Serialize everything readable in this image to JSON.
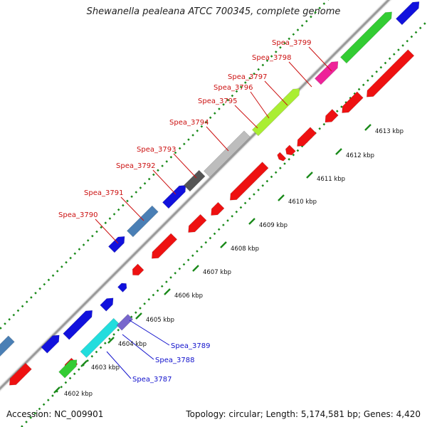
{
  "title": "Shewanella pealeana ATCC 700345, complete genome",
  "footer": {
    "accession": "Accession: NC_009901",
    "topology": "Topology: circular; Length: 5,174,581 bp; Genes: 4,420"
  },
  "tick_labels": [
    "4602 kbp",
    "4603 kbp",
    "4604 kbp",
    "4605 kbp",
    "4606 kbp",
    "4607 kbp",
    "4608 kbp",
    "4609 kbp",
    "4610 kbp",
    "4611 kbp",
    "4612 kbp",
    "4613 kbp"
  ],
  "gene_labels_red": [
    "Spea_3790",
    "Spea_3791",
    "Spea_3792",
    "Spea_3793",
    "Spea_3794",
    "Spea_3795",
    "Spea_3796",
    "Spea_3797",
    "Spea_3798",
    "Spea_3799"
  ],
  "gene_labels_blue": [
    "Spea_3787",
    "Spea_3788",
    "Spea_3789"
  ],
  "colors": {
    "backbone": "#9a9a9a",
    "tick": "#1a8a1a",
    "reverse_gene": "#ee1111",
    "label_red": "#cc1111",
    "label_blue": "#1111cc",
    "blue_gene": "#1111dd",
    "steelblue_gene": "#4a7fb5",
    "gray_gene": "#bdbdbd",
    "darkgray_gene": "#555555",
    "lime_gene": "#aaee33",
    "green_gene": "#33cc33",
    "magenta_gene": "#ee2299",
    "cyan_gene": "#22dddd",
    "purple_gene": "#7766cc"
  }
}
